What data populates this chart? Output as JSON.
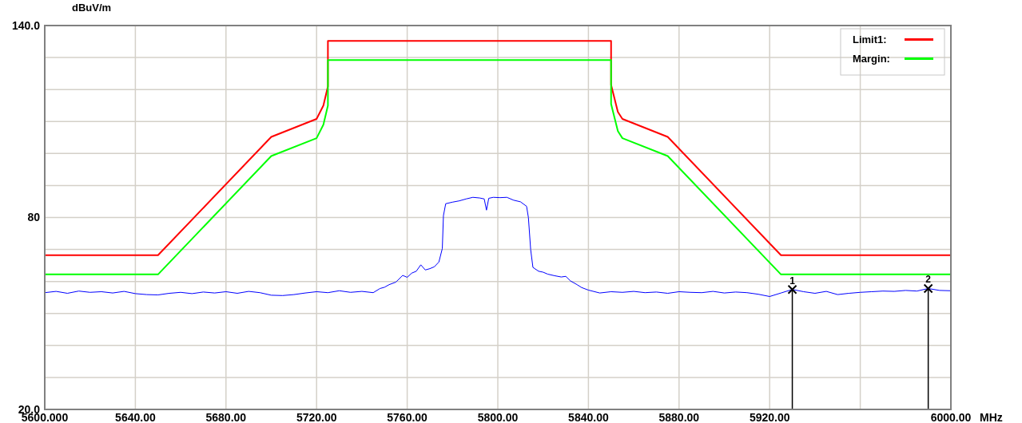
{
  "chart_data": {
    "type": "line",
    "ylabel": "dBuV/m",
    "xlabel": "MHz",
    "xlim": [
      5600,
      6000
    ],
    "xticks": [
      {
        "value": 5600,
        "label": "5600.000"
      },
      {
        "value": 5640,
        "label": "5640.00"
      },
      {
        "value": 5680,
        "label": "5680.00"
      },
      {
        "value": 5720,
        "label": "5720.00"
      },
      {
        "value": 5760,
        "label": "5760.00"
      },
      {
        "value": 5800,
        "label": "5800.00"
      },
      {
        "value": 5840,
        "label": "5840.00"
      },
      {
        "value": 5880,
        "label": "5880.00"
      },
      {
        "value": 5920,
        "label": "5920.00"
      },
      {
        "value": 5960,
        "label": null
      },
      {
        "value": 6000,
        "label": "6000.00"
      }
    ],
    "ylim": [
      20,
      140
    ],
    "yticks": [
      {
        "value": 20,
        "label": "20.0"
      },
      {
        "value": 30,
        "label": null
      },
      {
        "value": 40,
        "label": null
      },
      {
        "value": 50,
        "label": null
      },
      {
        "value": 60,
        "label": null
      },
      {
        "value": 70,
        "label": null
      },
      80,
      {
        "value": 90,
        "label": null
      },
      {
        "value": 100,
        "label": null
      },
      {
        "value": 110,
        "label": null
      },
      {
        "value": 120,
        "label": null
      },
      {
        "value": 130,
        "label": null
      },
      {
        "value": 140,
        "label": "140.0"
      }
    ],
    "grid": true,
    "legend": "top right",
    "line_style": "solid",
    "series": [
      {
        "name": "Limit1:",
        "color": "#ff0000",
        "x": [
          5600,
          5650,
          5700,
          5720,
          5723,
          5725,
          5725,
          5850,
          5850,
          5853,
          5855,
          5875,
          5925,
          6000
        ],
        "values": [
          68.2,
          68.2,
          105.2,
          110.8,
          115,
          121,
          135.2,
          135.2,
          121.5,
          113,
          110.8,
          105.2,
          68.2,
          68.2
        ]
      },
      {
        "name": "Margin:",
        "color": "#00ff00",
        "x": [
          5600,
          5650,
          5700,
          5720,
          5723,
          5725,
          5725,
          5850,
          5850,
          5853,
          5855,
          5875,
          5925,
          6000
        ],
        "values": [
          62.2,
          62.2,
          99.2,
          104.8,
          109,
          115,
          129.2,
          129.2,
          115.5,
          107,
          104.8,
          99.2,
          62.2,
          62.2
        ]
      },
      {
        "color": "#0000ff",
        "x": [
          5600,
          5605,
          5610,
          5615,
          5620,
          5625,
          5630,
          5635,
          5640,
          5645,
          5650,
          5655,
          5660,
          5665,
          5670,
          5675,
          5680,
          5685,
          5690,
          5695,
          5700,
          5705,
          5710,
          5715,
          5720,
          5725,
          5730,
          5735,
          5740,
          5745,
          5748,
          5750,
          5752,
          5755,
          5758,
          5760,
          5762,
          5764,
          5766,
          5768,
          5770,
          5772,
          5774,
          5775.5,
          5776,
          5777,
          5780,
          5783,
          5786,
          5789,
          5792,
          5794,
          5795,
          5796,
          5798,
          5801,
          5804,
          5807,
          5810,
          5812.7,
          5813.5,
          5814.5,
          5815.5,
          5818,
          5820,
          5822,
          5825,
          5828,
          5830,
          5832,
          5835,
          5837,
          5840,
          5845,
          5850,
          5855,
          5860,
          5865,
          5870,
          5875,
          5880,
          5885,
          5890,
          5895,
          5900,
          5905,
          5910,
          5915,
          5920,
          5925,
          5930,
          5935,
          5940,
          5945,
          5950,
          5955,
          5960,
          5965,
          5970,
          5975,
          5980,
          5985,
          5990,
          5995,
          6000
        ],
        "values": [
          56.5,
          56.9,
          56.3,
          57.0,
          56.6,
          56.8,
          56.4,
          56.9,
          56.2,
          55.9,
          55.8,
          56.3,
          56.6,
          56.2,
          56.7,
          56.4,
          56.8,
          56.3,
          56.9,
          56.5,
          55.7,
          55.6,
          55.9,
          56.4,
          56.8,
          56.5,
          57.1,
          56.6,
          56.9,
          56.5,
          57.8,
          58.2,
          59.0,
          59.8,
          61.9,
          61.3,
          62.6,
          63.2,
          65.2,
          63.6,
          64.0,
          64.6,
          66.1,
          70.3,
          80.6,
          84.3,
          84.8,
          85.2,
          85.8,
          86.3,
          86.1,
          85.8,
          82.3,
          86.0,
          86.3,
          86.2,
          86.3,
          85.4,
          84.9,
          83.5,
          80,
          70,
          64.4,
          63.2,
          62.9,
          62.3,
          61.8,
          61.4,
          61.6,
          60.2,
          59.0,
          58.1,
          57.3,
          56.4,
          56.8,
          56.6,
          56.9,
          56.5,
          56.7,
          56.3,
          56.8,
          56.6,
          56.5,
          56.9,
          56.4,
          56.7,
          56.5,
          56.0,
          55.3,
          56.4,
          57.5,
          56.8,
          56.3,
          56.9,
          55.9,
          56.3,
          56.6,
          56.8,
          57.0,
          56.9,
          57.2,
          57.0,
          57.8,
          57.2,
          57.1
        ]
      }
    ],
    "annotations": [
      {
        "text": "1",
        "x": 5930,
        "y": 57.5
      },
      {
        "text": "2",
        "x": 5990,
        "y": 57.8
      }
    ]
  }
}
